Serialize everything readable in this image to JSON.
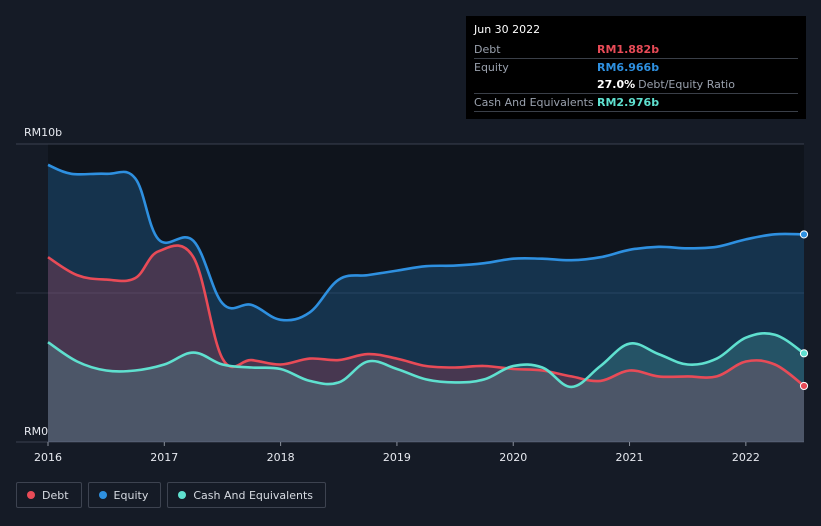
{
  "chart_data": {
    "type": "area",
    "title": "",
    "y_axis": {
      "top_label": "RM10b",
      "bottom_label": "RM0",
      "ylim": [
        0,
        10
      ]
    },
    "x_ticks": [
      "2016",
      "2017",
      "2018",
      "2019",
      "2020",
      "2021",
      "2022"
    ],
    "x_range": [
      2016.0,
      2022.5
    ],
    "series": [
      {
        "name": "Equity",
        "color": "#2e90e0",
        "points": [
          [
            2016.0,
            9.3
          ],
          [
            2016.2,
            9.0
          ],
          [
            2016.5,
            9.0
          ],
          [
            2016.75,
            8.85
          ],
          [
            2016.95,
            6.8
          ],
          [
            2017.25,
            6.75
          ],
          [
            2017.5,
            4.65
          ],
          [
            2017.75,
            4.6
          ],
          [
            2018.0,
            4.1
          ],
          [
            2018.25,
            4.35
          ],
          [
            2018.5,
            5.45
          ],
          [
            2018.75,
            5.6
          ],
          [
            2019.0,
            5.75
          ],
          [
            2019.25,
            5.9
          ],
          [
            2019.5,
            5.92
          ],
          [
            2019.75,
            6.0
          ],
          [
            2020.0,
            6.15
          ],
          [
            2020.25,
            6.15
          ],
          [
            2020.5,
            6.1
          ],
          [
            2020.75,
            6.2
          ],
          [
            2021.0,
            6.45
          ],
          [
            2021.25,
            6.55
          ],
          [
            2021.5,
            6.5
          ],
          [
            2021.75,
            6.55
          ],
          [
            2022.0,
            6.8
          ],
          [
            2022.25,
            6.97
          ],
          [
            2022.5,
            6.966
          ]
        ]
      },
      {
        "name": "Debt",
        "color": "#e84b57",
        "points": [
          [
            2016.0,
            6.2
          ],
          [
            2016.25,
            5.6
          ],
          [
            2016.5,
            5.45
          ],
          [
            2016.75,
            5.5
          ],
          [
            2016.95,
            6.4
          ],
          [
            2017.25,
            6.2
          ],
          [
            2017.5,
            2.8
          ],
          [
            2017.75,
            2.75
          ],
          [
            2018.0,
            2.6
          ],
          [
            2018.25,
            2.8
          ],
          [
            2018.5,
            2.75
          ],
          [
            2018.75,
            2.95
          ],
          [
            2019.0,
            2.8
          ],
          [
            2019.25,
            2.55
          ],
          [
            2019.5,
            2.5
          ],
          [
            2019.75,
            2.55
          ],
          [
            2020.0,
            2.45
          ],
          [
            2020.25,
            2.4
          ],
          [
            2020.5,
            2.2
          ],
          [
            2020.75,
            2.05
          ],
          [
            2021.0,
            2.4
          ],
          [
            2021.25,
            2.2
          ],
          [
            2021.5,
            2.2
          ],
          [
            2021.75,
            2.2
          ],
          [
            2022.0,
            2.7
          ],
          [
            2022.25,
            2.6
          ],
          [
            2022.5,
            1.882
          ]
        ]
      },
      {
        "name": "Cash And Equivalents",
        "color": "#5fe0cf",
        "points": [
          [
            2016.0,
            3.35
          ],
          [
            2016.25,
            2.7
          ],
          [
            2016.5,
            2.4
          ],
          [
            2016.75,
            2.4
          ],
          [
            2017.0,
            2.6
          ],
          [
            2017.25,
            3.0
          ],
          [
            2017.5,
            2.6
          ],
          [
            2017.75,
            2.5
          ],
          [
            2018.0,
            2.45
          ],
          [
            2018.25,
            2.05
          ],
          [
            2018.5,
            2.0
          ],
          [
            2018.75,
            2.7
          ],
          [
            2019.0,
            2.45
          ],
          [
            2019.25,
            2.1
          ],
          [
            2019.5,
            2.0
          ],
          [
            2019.75,
            2.1
          ],
          [
            2020.0,
            2.55
          ],
          [
            2020.25,
            2.5
          ],
          [
            2020.5,
            1.85
          ],
          [
            2020.75,
            2.55
          ],
          [
            2021.0,
            3.3
          ],
          [
            2021.25,
            2.95
          ],
          [
            2021.5,
            2.6
          ],
          [
            2021.75,
            2.8
          ],
          [
            2022.0,
            3.5
          ],
          [
            2022.25,
            3.6
          ],
          [
            2022.5,
            2.976
          ]
        ]
      }
    ],
    "legend": [
      "Debt",
      "Equity",
      "Cash And Equivalents"
    ],
    "legend_colors": [
      "#e84b57",
      "#2e90e0",
      "#5fe0cf"
    ]
  },
  "tooltip": {
    "date": "Jun 30 2022",
    "debt_label": "Debt",
    "debt_value": "RM1.882b",
    "equity_label": "Equity",
    "equity_value": "RM6.966b",
    "ratio_value": "27.0%",
    "ratio_label": "Debt/Equity Ratio",
    "cash_label": "Cash And Equivalents",
    "cash_value": "RM2.976b"
  }
}
